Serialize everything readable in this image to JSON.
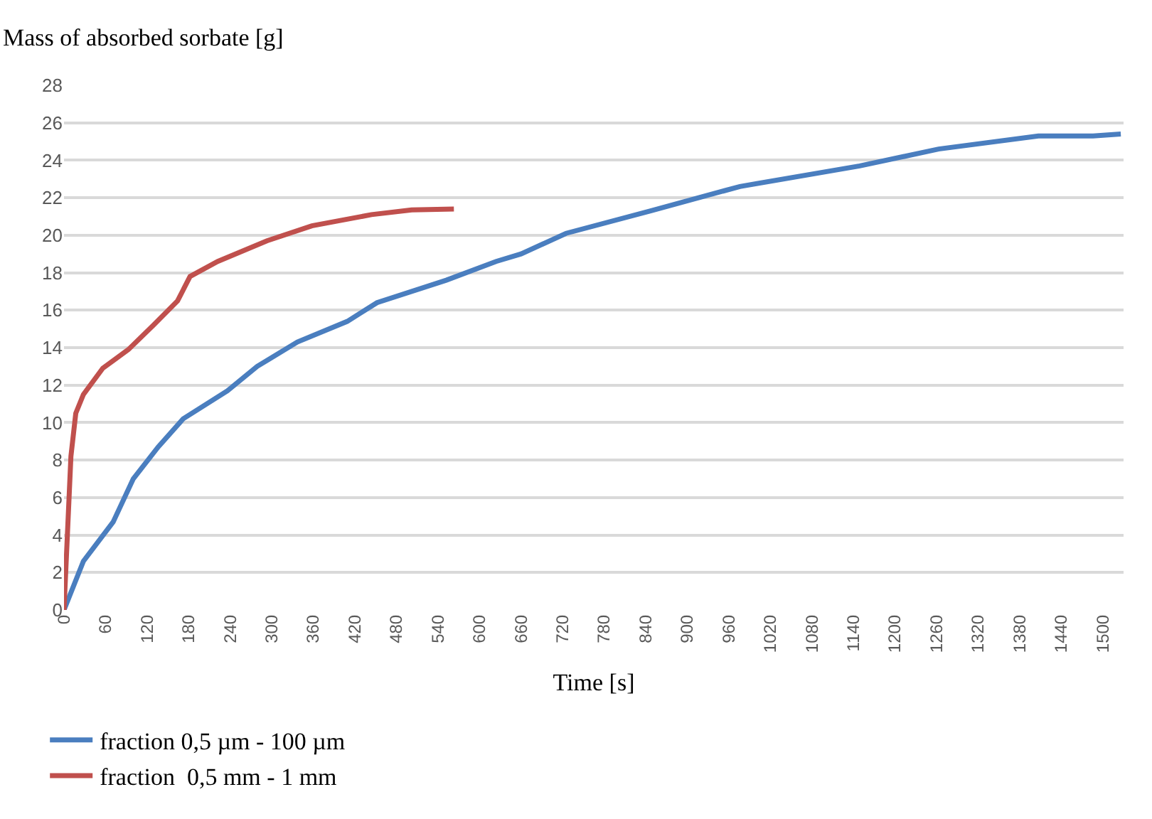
{
  "chart_data": {
    "type": "line",
    "ylabel": "Mass of absorbed sorbate [g]",
    "xlabel": "Time [s]",
    "series": [
      {
        "name": "fraction 0,5 µm - 100 µm",
        "color": "#4a7ebf",
        "x": [
          0,
          28,
          71,
          100,
          136,
          172,
          236,
          279,
          337,
          409,
          452,
          552,
          624,
          660,
          725,
          847,
          976,
          1149,
          1263,
          1407,
          1486,
          1526
        ],
        "values": [
          0,
          2.6,
          4.7,
          7.0,
          8.7,
          10.2,
          11.7,
          13.0,
          14.3,
          15.4,
          16.4,
          17.6,
          18.6,
          19.0,
          20.1,
          21.3,
          22.6,
          23.7,
          24.6,
          25.3,
          25.3,
          25.4
        ]
      },
      {
        "name": "fraction  0,5 mm - 1 mm",
        "color": "#c0504d",
        "x": [
          0,
          10,
          17,
          28,
          56,
          93,
          129,
          164,
          182,
          222,
          293,
          358,
          444,
          502,
          563
        ],
        "values": [
          0,
          8.2,
          10.5,
          11.5,
          12.9,
          13.9,
          15.2,
          16.5,
          17.8,
          18.6,
          19.7,
          20.5,
          21.1,
          21.35,
          21.4
        ]
      }
    ],
    "xlim": [
      0,
      1530
    ],
    "xticks": [
      0,
      60,
      120,
      180,
      240,
      300,
      360,
      420,
      480,
      540,
      600,
      660,
      720,
      780,
      840,
      900,
      960,
      1020,
      1080,
      1140,
      1200,
      1260,
      1320,
      1380,
      1440,
      1500
    ],
    "ylim": [
      0,
      28
    ],
    "yticks": [
      0,
      2,
      4,
      6,
      8,
      10,
      12,
      14,
      16,
      18,
      20,
      22,
      24,
      26,
      28
    ],
    "grid": "y",
    "legend": "bottom",
    "marker": "none",
    "line_style": "solid"
  }
}
